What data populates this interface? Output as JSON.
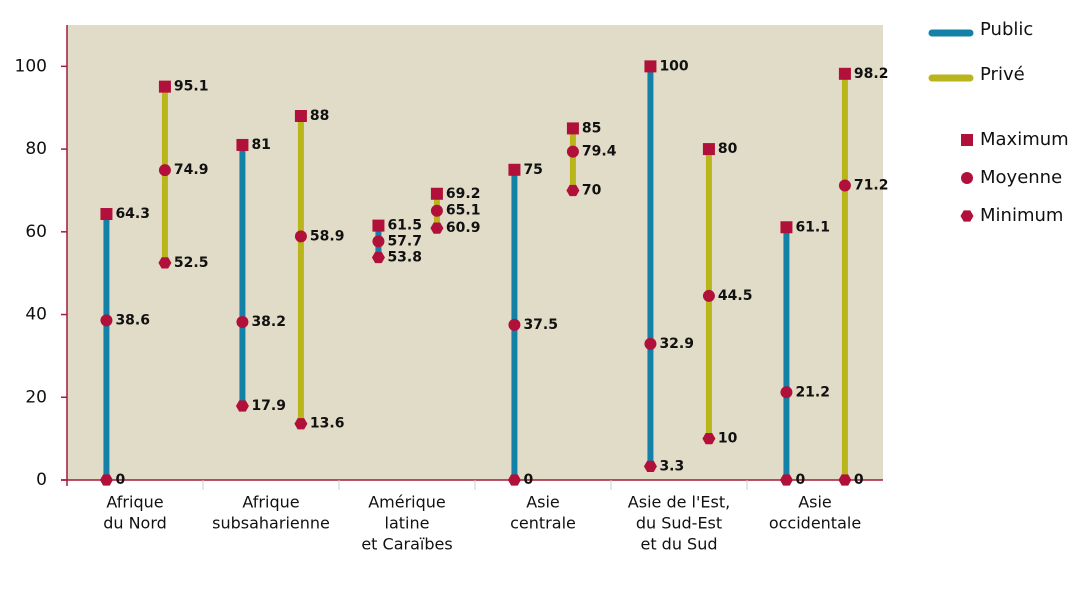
{
  "chart_data": {
    "type": "range",
    "categories": [
      [
        "Afrique",
        "du Nord"
      ],
      [
        "Afrique",
        "subsaharienne"
      ],
      [
        "Amérique",
        "latine",
        "et Caraïbes"
      ],
      [
        "Asie",
        "centrale"
      ],
      [
        "Asie de l'Est,",
        "du Sud-Est",
        "et du Sud"
      ],
      [
        "Asie",
        "occidentale"
      ]
    ],
    "series": [
      {
        "name": "Public",
        "color": "#1380a8",
        "max": [
          64.3,
          81,
          61.5,
          75,
          100,
          61.1
        ],
        "mean": [
          38.6,
          38.2,
          57.7,
          37.5,
          32.9,
          21.2
        ],
        "min": [
          0,
          17.9,
          53.8,
          0,
          3.3,
          0
        ]
      },
      {
        "name": "Privé",
        "color": "#bab51c",
        "max": [
          95.1,
          88,
          69.2,
          85,
          80,
          98.2
        ],
        "mean": [
          74.9,
          58.9,
          65.1,
          79.4,
          44.5,
          71.2
        ],
        "min": [
          52.5,
          13.6,
          60.9,
          70,
          10,
          0
        ]
      }
    ],
    "marker_legend": [
      "Maximum",
      "Moyenne",
      "Minimum"
    ],
    "marker_color": "#b0103a",
    "background": "#e1dcc8",
    "axis_color": "#a01c3c",
    "ylim": [
      0,
      110
    ],
    "yticks": [
      0,
      20,
      40,
      60,
      80,
      100
    ],
    "grid": false
  }
}
